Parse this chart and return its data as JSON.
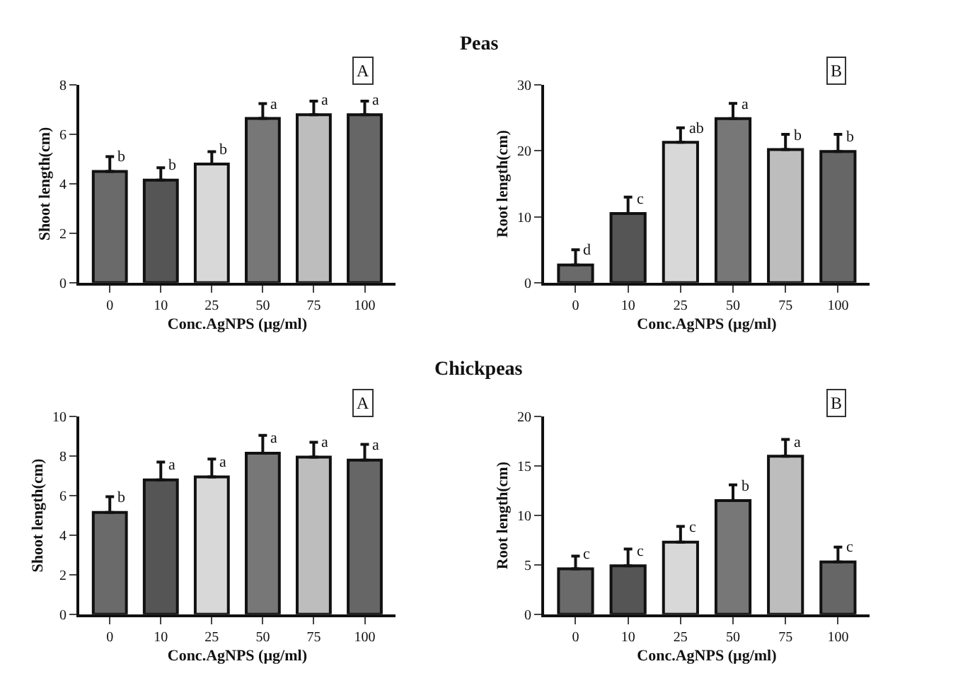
{
  "chart_data": [
    {
      "type": "other",
      "title": "Peas"
    },
    {
      "type": "bar",
      "xlabel": "Conc.AgNPS (µg/ml)",
      "ylabel": "Shoot length(cm)",
      "annotations": [
        "A"
      ],
      "categories": [
        "0",
        "10",
        "25",
        "50",
        "75",
        "100"
      ],
      "values": [
        4.5,
        4.15,
        4.8,
        6.65,
        6.8,
        6.8
      ],
      "errors": [
        [
          4.5,
          5.1
        ],
        [
          4.15,
          4.65
        ],
        [
          4.8,
          5.3
        ],
        [
          6.65,
          7.25
        ],
        [
          6.8,
          7.35
        ],
        [
          6.8,
          7.35
        ]
      ],
      "value_labels": [
        "b",
        "b",
        "b",
        "a",
        "a",
        "a"
      ],
      "colors": [
        "#6a6a6a",
        "#555555",
        "#d8d8d8",
        "#777777",
        "#bdbdbd",
        "#666666"
      ],
      "ylim": [
        0,
        8
      ],
      "yticks": [
        0,
        2,
        4,
        6,
        8
      ]
    },
    {
      "type": "bar",
      "xlabel": "Conc.AgNPS (µg/ml)",
      "ylabel": "Root length(cm)",
      "annotations": [
        "B"
      ],
      "categories": [
        "0",
        "10",
        "25",
        "50",
        "75",
        "100"
      ],
      "values": [
        2.7,
        10.5,
        21.3,
        24.9,
        20.2,
        19.9
      ],
      "errors": [
        [
          2.7,
          5.0
        ],
        [
          10.5,
          13.0
        ],
        [
          21.3,
          23.5
        ],
        [
          24.9,
          27.2
        ],
        [
          20.2,
          22.5
        ],
        [
          19.9,
          22.5
        ]
      ],
      "value_labels": [
        "d",
        "c",
        "ab",
        "a",
        "b",
        "b"
      ],
      "colors": [
        "#6a6a6a",
        "#555555",
        "#d8d8d8",
        "#777777",
        "#bdbdbd",
        "#666666"
      ],
      "ylim": [
        0,
        30
      ],
      "yticks": [
        0,
        10,
        20,
        30
      ]
    },
    {
      "type": "other",
      "title": "Chickpeas"
    },
    {
      "type": "bar",
      "xlabel": "Conc.AgNPS (µg/ml)",
      "ylabel": "Shoot length(cm)",
      "annotations": [
        "A"
      ],
      "categories": [
        "0",
        "10",
        "25",
        "50",
        "75",
        "100"
      ],
      "values": [
        5.15,
        6.8,
        6.95,
        8.15,
        7.95,
        7.8
      ],
      "errors": [
        [
          5.15,
          5.95
        ],
        [
          6.8,
          7.7
        ],
        [
          6.95,
          7.85
        ],
        [
          8.15,
          9.05
        ],
        [
          7.95,
          8.7
        ],
        [
          7.8,
          8.6
        ]
      ],
      "value_labels": [
        "b",
        "a",
        "a",
        "a",
        "a",
        "a"
      ],
      "colors": [
        "#6a6a6a",
        "#555555",
        "#d8d8d8",
        "#777777",
        "#bdbdbd",
        "#666666"
      ],
      "ylim": [
        0,
        10
      ],
      "yticks": [
        0,
        2,
        4,
        6,
        8,
        10
      ]
    },
    {
      "type": "bar",
      "xlabel": "Conc.AgNPS (µg/ml)",
      "ylabel": "Root length(cm)",
      "annotations": [
        "B"
      ],
      "categories": [
        "0",
        "10",
        "25",
        "50",
        "75",
        "100"
      ],
      "values": [
        4.6,
        4.9,
        7.3,
        11.5,
        16.0,
        5.3
      ],
      "errors": [
        [
          4.6,
          5.9
        ],
        [
          4.9,
          6.6
        ],
        [
          7.3,
          8.9
        ],
        [
          11.5,
          13.1
        ],
        [
          16.0,
          17.7
        ],
        [
          5.3,
          6.8
        ]
      ],
      "value_labels": [
        "c",
        "c",
        "c",
        "b",
        "a",
        "c"
      ],
      "colors": [
        "#6a6a6a",
        "#555555",
        "#d8d8d8",
        "#777777",
        "#bdbdbd",
        "#666666"
      ],
      "ylim": [
        0,
        20
      ],
      "yticks": [
        0,
        5,
        10,
        15,
        20
      ]
    }
  ]
}
